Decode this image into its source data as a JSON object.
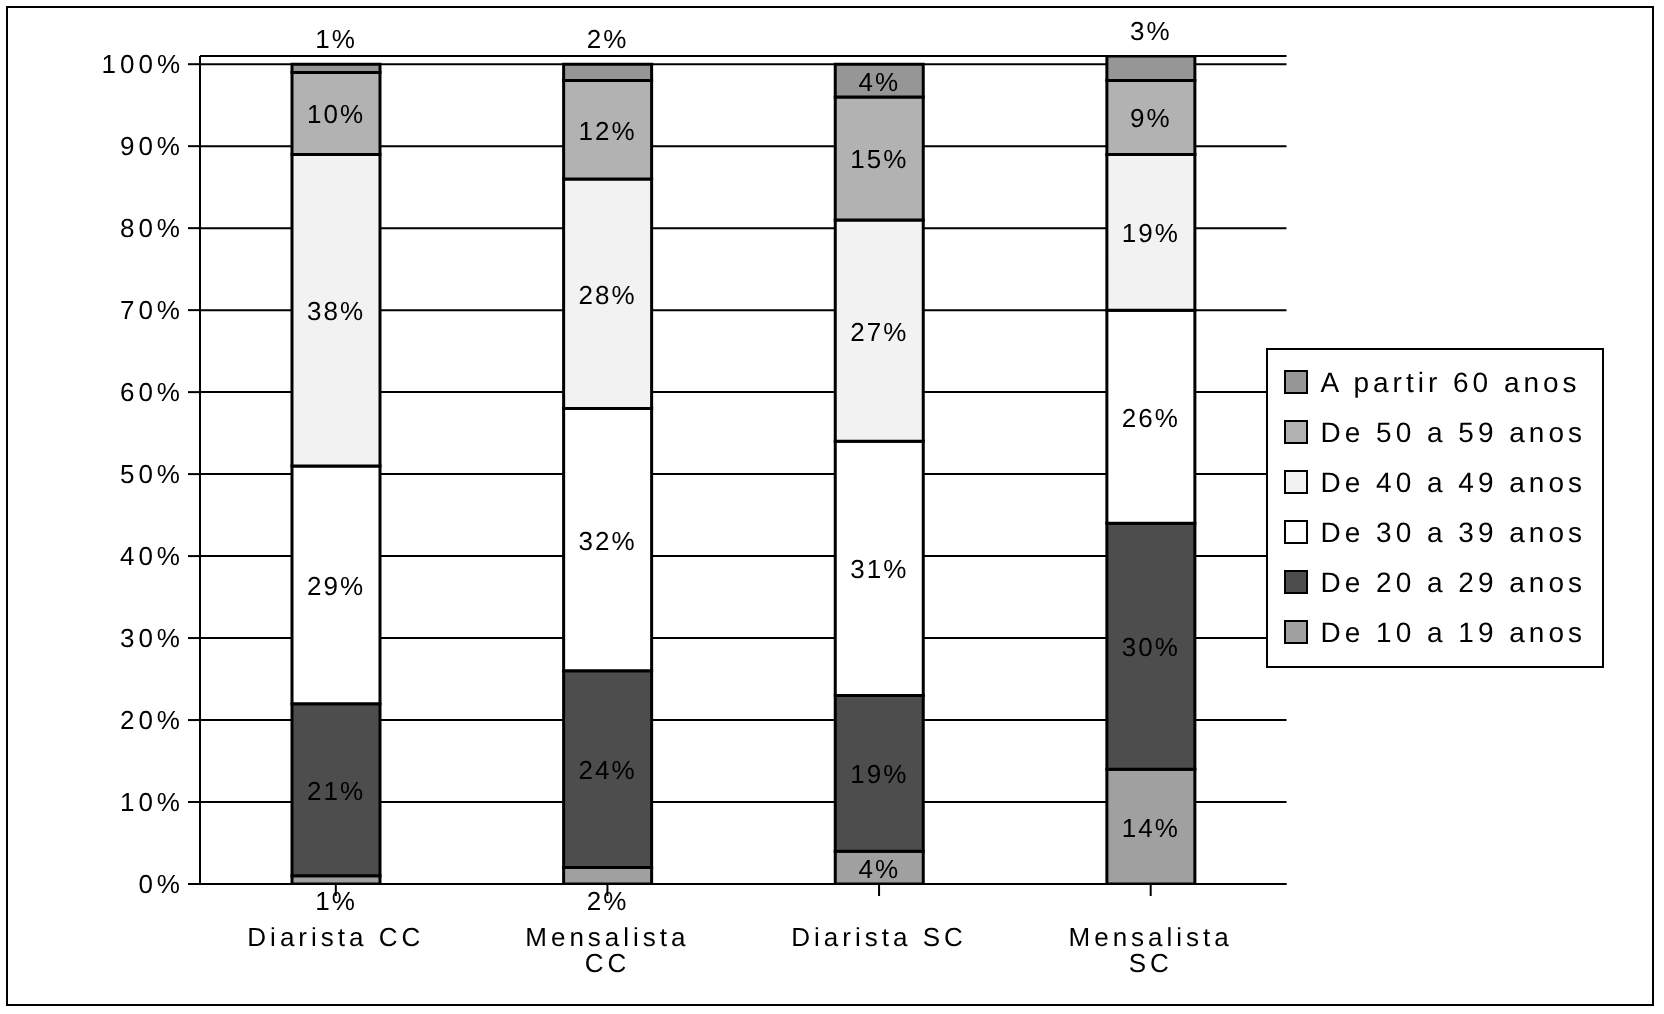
{
  "chart_data": {
    "type": "bar",
    "stacked": true,
    "categories": [
      "Diarista CC",
      "Mensalista CC",
      "Diarista SC",
      "Mensalista SC"
    ],
    "series": [
      {
        "name": "De 10 a 19 anos",
        "color": "#a0a0a0",
        "values": [
          1,
          2,
          4,
          14
        ],
        "value_labels": [
          "1%",
          "2%",
          "4%",
          "14%"
        ]
      },
      {
        "name": "De 20 a 29 anos",
        "color": "#4d4d4d",
        "values": [
          21,
          24,
          19,
          30
        ],
        "value_labels": [
          "21%",
          "24%",
          "19%",
          "30%"
        ]
      },
      {
        "name": "De 30 a 39 anos",
        "color": "#ffffff",
        "values": [
          29,
          32,
          31,
          26
        ],
        "value_labels": [
          "29%",
          "32%",
          "31%",
          "26%"
        ]
      },
      {
        "name": "De 40 a 49 anos",
        "color": "#f2f2f2",
        "values": [
          38,
          28,
          27,
          19
        ],
        "value_labels": [
          "38%",
          "28%",
          "27%",
          "19%"
        ]
      },
      {
        "name": "De 50 a 59 anos",
        "color": "#b2b2b2",
        "values": [
          10,
          12,
          15,
          9
        ],
        "value_labels": [
          "10%",
          "12%",
          "15%",
          "9%"
        ]
      },
      {
        "name": "A partir 60 anos",
        "color": "#969696",
        "values": [
          1,
          2,
          4,
          3
        ],
        "value_labels": [
          "1%",
          "2%",
          "4%",
          "3%"
        ]
      }
    ],
    "ylim": [
      0,
      101
    ],
    "yticks": [
      {
        "value": 0,
        "label": "0%"
      },
      {
        "value": 10,
        "label": "10%"
      },
      {
        "value": 20,
        "label": "20%"
      },
      {
        "value": 30,
        "label": "30%"
      },
      {
        "value": 40,
        "label": "40%"
      },
      {
        "value": 50,
        "label": "50%"
      },
      {
        "value": 60,
        "label": "60%"
      },
      {
        "value": 70,
        "label": "70%"
      },
      {
        "value": 80,
        "label": "80%"
      },
      {
        "value": 90,
        "label": "90%"
      },
      {
        "value": 100,
        "label": "100%"
      }
    ],
    "grid": "y",
    "legend": "right"
  }
}
